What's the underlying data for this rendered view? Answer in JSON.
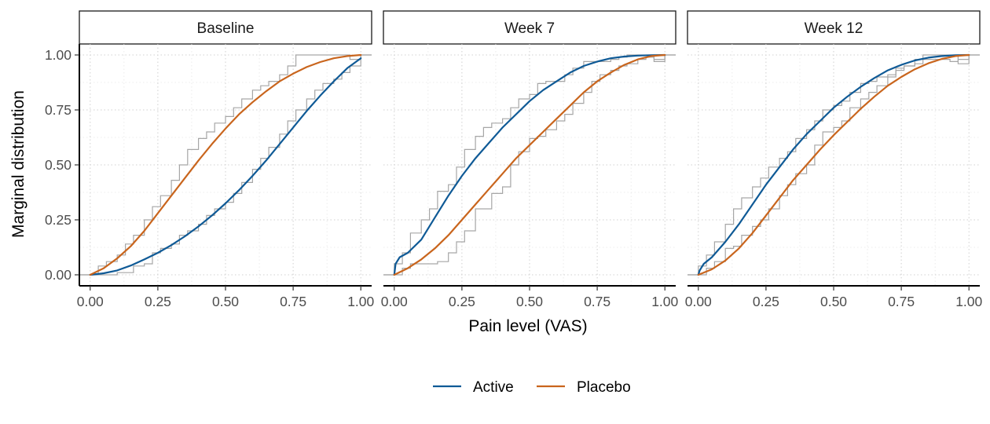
{
  "chart_data": {
    "type": "line",
    "title": "",
    "xlabel": "Pain level (VAS)",
    "ylabel": "Marginal distribution",
    "xlim": [
      -0.04,
      1.04
    ],
    "ylim": [
      -0.05,
      1.05
    ],
    "x_ticks": [
      "0.00",
      "0.25",
      "0.50",
      "0.75",
      "1.00"
    ],
    "y_ticks": [
      "0.00",
      "0.25",
      "0.50",
      "0.75",
      "1.00"
    ],
    "grid": true,
    "legend_position": "bottom",
    "legend": [
      {
        "label": "Active",
        "color": "#0f5a96"
      },
      {
        "label": "Placebo",
        "color": "#c9651d"
      }
    ],
    "colors": {
      "active": "#0f5a96",
      "placebo": "#c9651d",
      "empirical": "#a6a6a6"
    },
    "facets": [
      {
        "label": "Baseline",
        "series": [
          {
            "name": "Active",
            "x": [
              0,
              0.05,
              0.1,
              0.15,
              0.2,
              0.25,
              0.3,
              0.35,
              0.4,
              0.45,
              0.5,
              0.55,
              0.6,
              0.65,
              0.7,
              0.75,
              0.8,
              0.85,
              0.9,
              0.95,
              1.0
            ],
            "y": [
              0,
              0.007,
              0.02,
              0.042,
              0.07,
              0.1,
              0.135,
              0.175,
              0.22,
              0.27,
              0.325,
              0.385,
              0.45,
              0.52,
              0.595,
              0.67,
              0.745,
              0.815,
              0.88,
              0.94,
              0.985
            ]
          },
          {
            "name": "Placebo",
            "x": [
              0,
              0.05,
              0.1,
              0.15,
              0.2,
              0.25,
              0.3,
              0.35,
              0.4,
              0.45,
              0.5,
              0.55,
              0.6,
              0.65,
              0.7,
              0.75,
              0.8,
              0.85,
              0.9,
              0.95,
              1.0
            ],
            "y": [
              0,
              0.03,
              0.075,
              0.13,
              0.2,
              0.28,
              0.36,
              0.44,
              0.52,
              0.595,
              0.665,
              0.73,
              0.785,
              0.835,
              0.88,
              0.915,
              0.945,
              0.968,
              0.985,
              0.995,
              1.0
            ]
          }
        ],
        "empirical": [
          {
            "x": [
              0,
              0.03,
              0.06,
              0.1,
              0.13,
              0.16,
              0.2,
              0.23,
              0.26,
              0.3,
              0.33,
              0.36,
              0.4,
              0.43,
              0.46,
              0.5,
              0.53,
              0.56,
              0.6,
              0.63,
              0.66,
              0.7,
              0.73,
              0.76,
              0.8,
              0.83,
              0.86,
              0.9,
              0.93,
              0.96,
              1.0
            ],
            "y": [
              0.0,
              0.0,
              0.0,
              0.01,
              0.01,
              0.04,
              0.05,
              0.1,
              0.12,
              0.14,
              0.18,
              0.2,
              0.23,
              0.27,
              0.3,
              0.33,
              0.37,
              0.42,
              0.48,
              0.53,
              0.58,
              0.64,
              0.7,
              0.75,
              0.8,
              0.84,
              0.87,
              0.89,
              0.92,
              0.95,
              1.0
            ]
          },
          {
            "x": [
              0,
              0.03,
              0.06,
              0.1,
              0.13,
              0.16,
              0.2,
              0.23,
              0.26,
              0.3,
              0.33,
              0.36,
              0.4,
              0.43,
              0.46,
              0.5,
              0.53,
              0.56,
              0.6,
              0.63,
              0.66,
              0.7,
              0.73,
              0.76,
              0.8,
              0.83,
              0.86,
              0.9,
              0.93,
              0.96,
              1.0
            ],
            "y": [
              0.0,
              0.04,
              0.06,
              0.09,
              0.14,
              0.18,
              0.25,
              0.31,
              0.36,
              0.43,
              0.5,
              0.57,
              0.62,
              0.65,
              0.69,
              0.72,
              0.76,
              0.8,
              0.84,
              0.86,
              0.88,
              0.91,
              0.95,
              1.0,
              1.0,
              1.0,
              1.0,
              1.0,
              1.0,
              0.98,
              1.0
            ]
          }
        ]
      },
      {
        "label": "Week 7",
        "series": [
          {
            "name": "Active",
            "x": [
              0,
              0.005,
              0.02,
              0.05,
              0.1,
              0.15,
              0.2,
              0.25,
              0.3,
              0.35,
              0.4,
              0.45,
              0.5,
              0.55,
              0.6,
              0.65,
              0.7,
              0.75,
              0.8,
              0.85,
              0.9,
              0.95,
              1.0
            ],
            "y": [
              0,
              0.05,
              0.08,
              0.1,
              0.16,
              0.26,
              0.36,
              0.45,
              0.53,
              0.6,
              0.67,
              0.73,
              0.79,
              0.84,
              0.88,
              0.92,
              0.95,
              0.97,
              0.985,
              0.993,
              0.997,
              0.999,
              1.0
            ]
          },
          {
            "name": "Placebo",
            "x": [
              0,
              0.05,
              0.1,
              0.15,
              0.2,
              0.25,
              0.3,
              0.35,
              0.4,
              0.45,
              0.5,
              0.55,
              0.6,
              0.65,
              0.7,
              0.75,
              0.8,
              0.85,
              0.9,
              0.95,
              1.0
            ],
            "y": [
              0,
              0.03,
              0.07,
              0.12,
              0.18,
              0.25,
              0.32,
              0.39,
              0.46,
              0.53,
              0.59,
              0.65,
              0.71,
              0.77,
              0.83,
              0.88,
              0.92,
              0.955,
              0.98,
              0.995,
              1.0
            ]
          }
        ],
        "empirical": [
          {
            "x": [
              0,
              0.03,
              0.06,
              0.1,
              0.13,
              0.16,
              0.2,
              0.23,
              0.26,
              0.3,
              0.33,
              0.36,
              0.4,
              0.43,
              0.46,
              0.5,
              0.53,
              0.56,
              0.6,
              0.63,
              0.66,
              0.7,
              0.73,
              0.76,
              0.8,
              0.83,
              0.86,
              0.9,
              0.93,
              0.96,
              1.0
            ],
            "y": [
              0.05,
              0.1,
              0.19,
              0.25,
              0.3,
              0.38,
              0.41,
              0.49,
              0.57,
              0.63,
              0.67,
              0.69,
              0.71,
              0.76,
              0.8,
              0.82,
              0.87,
              0.88,
              0.88,
              0.91,
              0.94,
              0.97,
              0.97,
              0.97,
              0.98,
              0.99,
              1.0,
              1.0,
              1.0,
              0.97,
              1.0
            ]
          },
          {
            "x": [
              0,
              0.03,
              0.06,
              0.1,
              0.13,
              0.16,
              0.2,
              0.23,
              0.26,
              0.3,
              0.33,
              0.36,
              0.4,
              0.43,
              0.46,
              0.5,
              0.53,
              0.56,
              0.6,
              0.63,
              0.66,
              0.7,
              0.73,
              0.76,
              0.8,
              0.83,
              0.86,
              0.9,
              0.93,
              0.96,
              1.0
            ],
            "y": [
              0.0,
              0.03,
              0.05,
              0.05,
              0.05,
              0.06,
              0.1,
              0.15,
              0.2,
              0.3,
              0.3,
              0.37,
              0.4,
              0.5,
              0.56,
              0.62,
              0.63,
              0.66,
              0.7,
              0.73,
              0.78,
              0.83,
              0.88,
              0.91,
              0.93,
              0.95,
              0.96,
              0.98,
              0.99,
              0.98,
              1.0
            ]
          }
        ]
      },
      {
        "label": "Week 12",
        "series": [
          {
            "name": "Active",
            "x": [
              0,
              0.005,
              0.02,
              0.05,
              0.1,
              0.15,
              0.2,
              0.25,
              0.3,
              0.35,
              0.4,
              0.45,
              0.5,
              0.55,
              0.6,
              0.65,
              0.7,
              0.75,
              0.8,
              0.85,
              0.9,
              0.95,
              1.0
            ],
            "y": [
              0,
              0.02,
              0.05,
              0.08,
              0.15,
              0.23,
              0.32,
              0.41,
              0.49,
              0.57,
              0.64,
              0.7,
              0.76,
              0.81,
              0.855,
              0.895,
              0.93,
              0.955,
              0.975,
              0.988,
              0.995,
              0.999,
              1.0
            ]
          },
          {
            "name": "Placebo",
            "x": [
              0,
              0.05,
              0.1,
              0.15,
              0.2,
              0.25,
              0.3,
              0.35,
              0.4,
              0.45,
              0.5,
              0.55,
              0.6,
              0.65,
              0.7,
              0.75,
              0.8,
              0.85,
              0.9,
              0.95,
              1.0
            ],
            "y": [
              0,
              0.025,
              0.065,
              0.12,
              0.19,
              0.27,
              0.35,
              0.43,
              0.5,
              0.57,
              0.635,
              0.695,
              0.755,
              0.81,
              0.86,
              0.9,
              0.935,
              0.962,
              0.982,
              0.995,
              1.0
            ]
          }
        ],
        "empirical": [
          {
            "x": [
              0,
              0.03,
              0.06,
              0.1,
              0.13,
              0.16,
              0.2,
              0.23,
              0.26,
              0.3,
              0.33,
              0.36,
              0.4,
              0.43,
              0.46,
              0.5,
              0.53,
              0.56,
              0.6,
              0.63,
              0.66,
              0.7,
              0.73,
              0.76,
              0.8,
              0.83,
              0.86,
              0.9,
              0.93,
              0.96,
              1.0
            ],
            "y": [
              0.04,
              0.09,
              0.15,
              0.23,
              0.3,
              0.35,
              0.4,
              0.44,
              0.49,
              0.53,
              0.56,
              0.62,
              0.66,
              0.7,
              0.75,
              0.77,
              0.79,
              0.83,
              0.87,
              0.88,
              0.9,
              0.91,
              0.93,
              0.95,
              0.98,
              1.0,
              1.0,
              1.0,
              1.0,
              0.96,
              1.0
            ]
          },
          {
            "x": [
              0,
              0.03,
              0.06,
              0.1,
              0.13,
              0.16,
              0.2,
              0.23,
              0.26,
              0.3,
              0.33,
              0.36,
              0.4,
              0.43,
              0.46,
              0.5,
              0.53,
              0.56,
              0.6,
              0.63,
              0.66,
              0.7,
              0.73,
              0.76,
              0.8,
              0.83,
              0.86,
              0.9,
              0.93,
              0.96,
              1.0
            ],
            "y": [
              0.0,
              0.03,
              0.06,
              0.12,
              0.13,
              0.18,
              0.22,
              0.25,
              0.3,
              0.36,
              0.41,
              0.46,
              0.5,
              0.59,
              0.65,
              0.67,
              0.7,
              0.76,
              0.8,
              0.83,
              0.86,
              0.9,
              0.94,
              0.95,
              0.96,
              0.98,
              0.98,
              0.98,
              0.97,
              0.98,
              1.0
            ]
          }
        ]
      }
    ]
  }
}
